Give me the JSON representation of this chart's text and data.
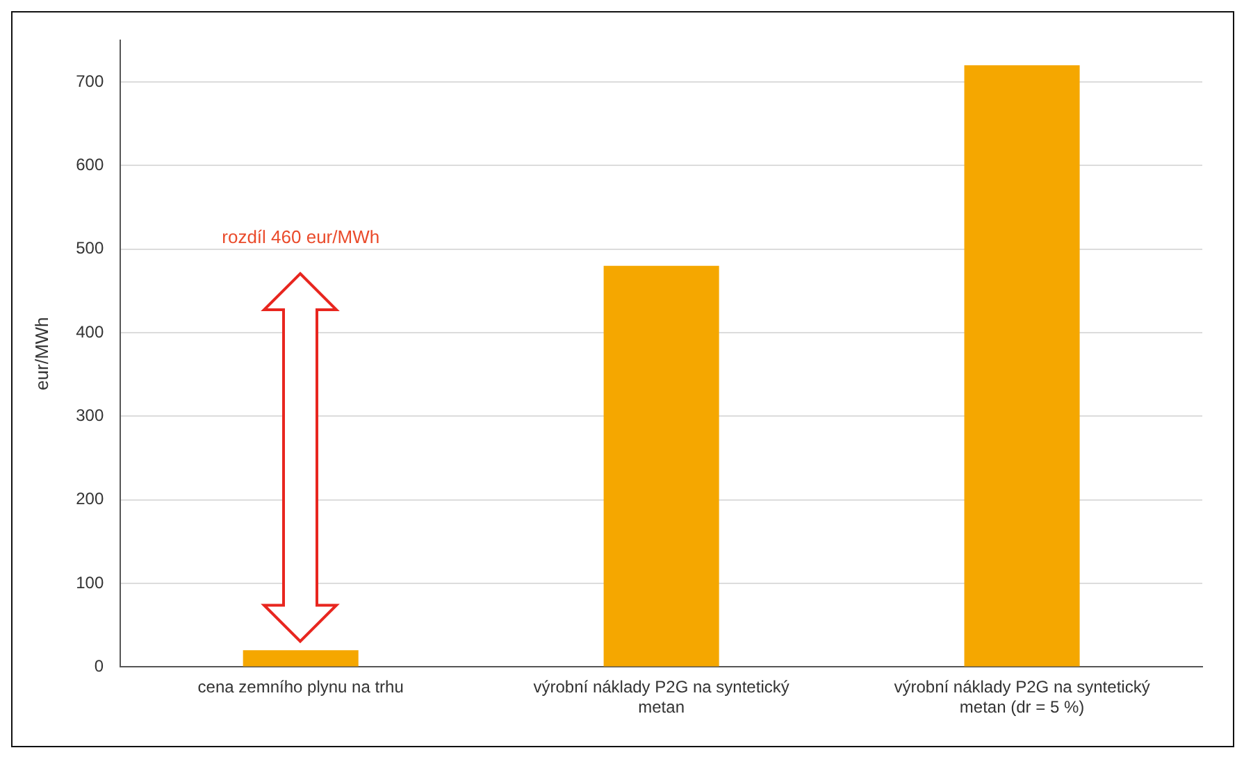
{
  "chart_data": {
    "type": "bar",
    "ylabel": "eur/MWh",
    "categories": [
      "cena zemního plynu na trhu",
      "výrobní náklady P2G na syntetický metan",
      "výrobní náklady P2G na syntetický metan (dr = 5 %)"
    ],
    "values": [
      20,
      480,
      720
    ],
    "color": "#f5a700",
    "ylim": [
      0,
      750
    ],
    "yticks": [
      0,
      100,
      200,
      300,
      400,
      500,
      600,
      700
    ],
    "grid": "y",
    "legend": false,
    "annotations": [
      "rozdíl 460 eur/MWh"
    ]
  }
}
